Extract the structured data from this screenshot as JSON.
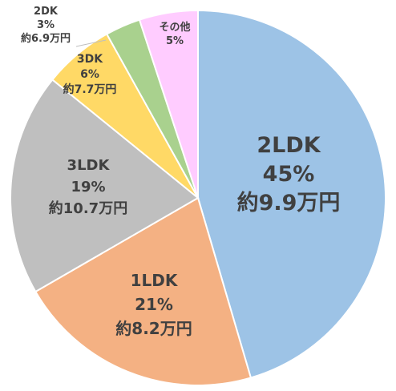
{
  "chart_data": {
    "type": "pie",
    "start": "top",
    "direction": "clockwise",
    "slices": [
      {
        "name": "2LDK",
        "percent": 45,
        "percent_label": "45%",
        "price_label": "約9.9万円",
        "color": "#9dc3e6"
      },
      {
        "name": "1LDK",
        "percent": 21,
        "percent_label": "21%",
        "price_label": "約8.2万円",
        "color": "#f4b183"
      },
      {
        "name": "3LDK",
        "percent": 19,
        "percent_label": "19%",
        "price_label": "約10.7万円",
        "color": "#bfbfbf"
      },
      {
        "name": "3DK",
        "percent": 6,
        "percent_label": "6%",
        "price_label": "約7.7万円",
        "color": "#ffd966"
      },
      {
        "name": "2DK",
        "percent": 3,
        "percent_label": "3%",
        "price_label": "約6.9万円",
        "color": "#a9d18e"
      },
      {
        "name": "その他",
        "percent": 5,
        "percent_label": "5%",
        "price_label": "",
        "color": "#ffccff"
      }
    ]
  }
}
